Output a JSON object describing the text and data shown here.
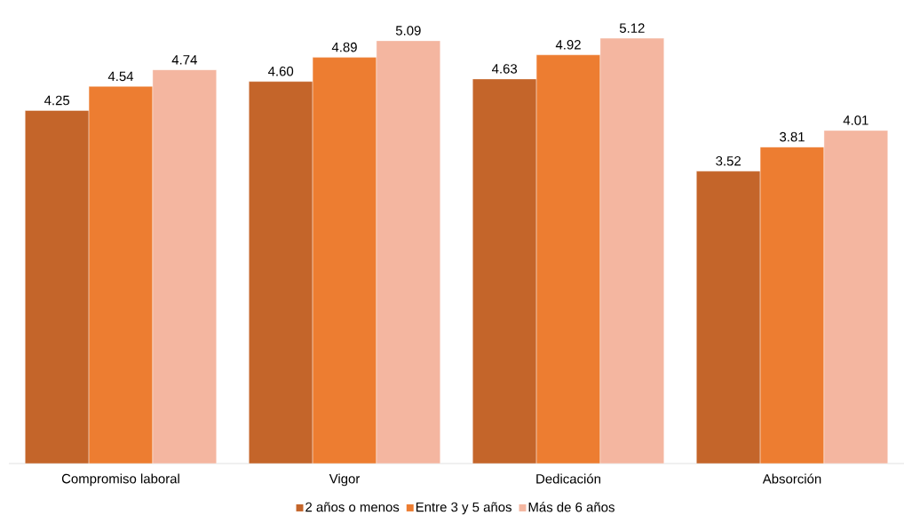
{
  "chart_data": {
    "type": "bar",
    "categories": [
      "Compromiso laboral",
      "Vigor",
      "Dedicación",
      "Absorción"
    ],
    "series": [
      {
        "name": "2 años o menos",
        "color": "#c4652a",
        "values": [
          4.25,
          4.6,
          4.63,
          3.52
        ],
        "value_labels": [
          "4.25",
          "4.60",
          "4.63",
          "3.52"
        ]
      },
      {
        "name": "Entre 3 y 5 años",
        "color": "#ed7d31",
        "values": [
          4.54,
          4.89,
          4.92,
          3.81
        ],
        "value_labels": [
          "4.54",
          "4.89",
          "4.92",
          "3.81"
        ]
      },
      {
        "name": "Más de 6 años",
        "color": "#f4b6a0",
        "values": [
          4.74,
          5.09,
          5.12,
          4.01
        ],
        "value_labels": [
          "4.74",
          "5.09",
          "5.12",
          "4.01"
        ]
      }
    ],
    "legend": "bottom",
    "grid": false
  }
}
